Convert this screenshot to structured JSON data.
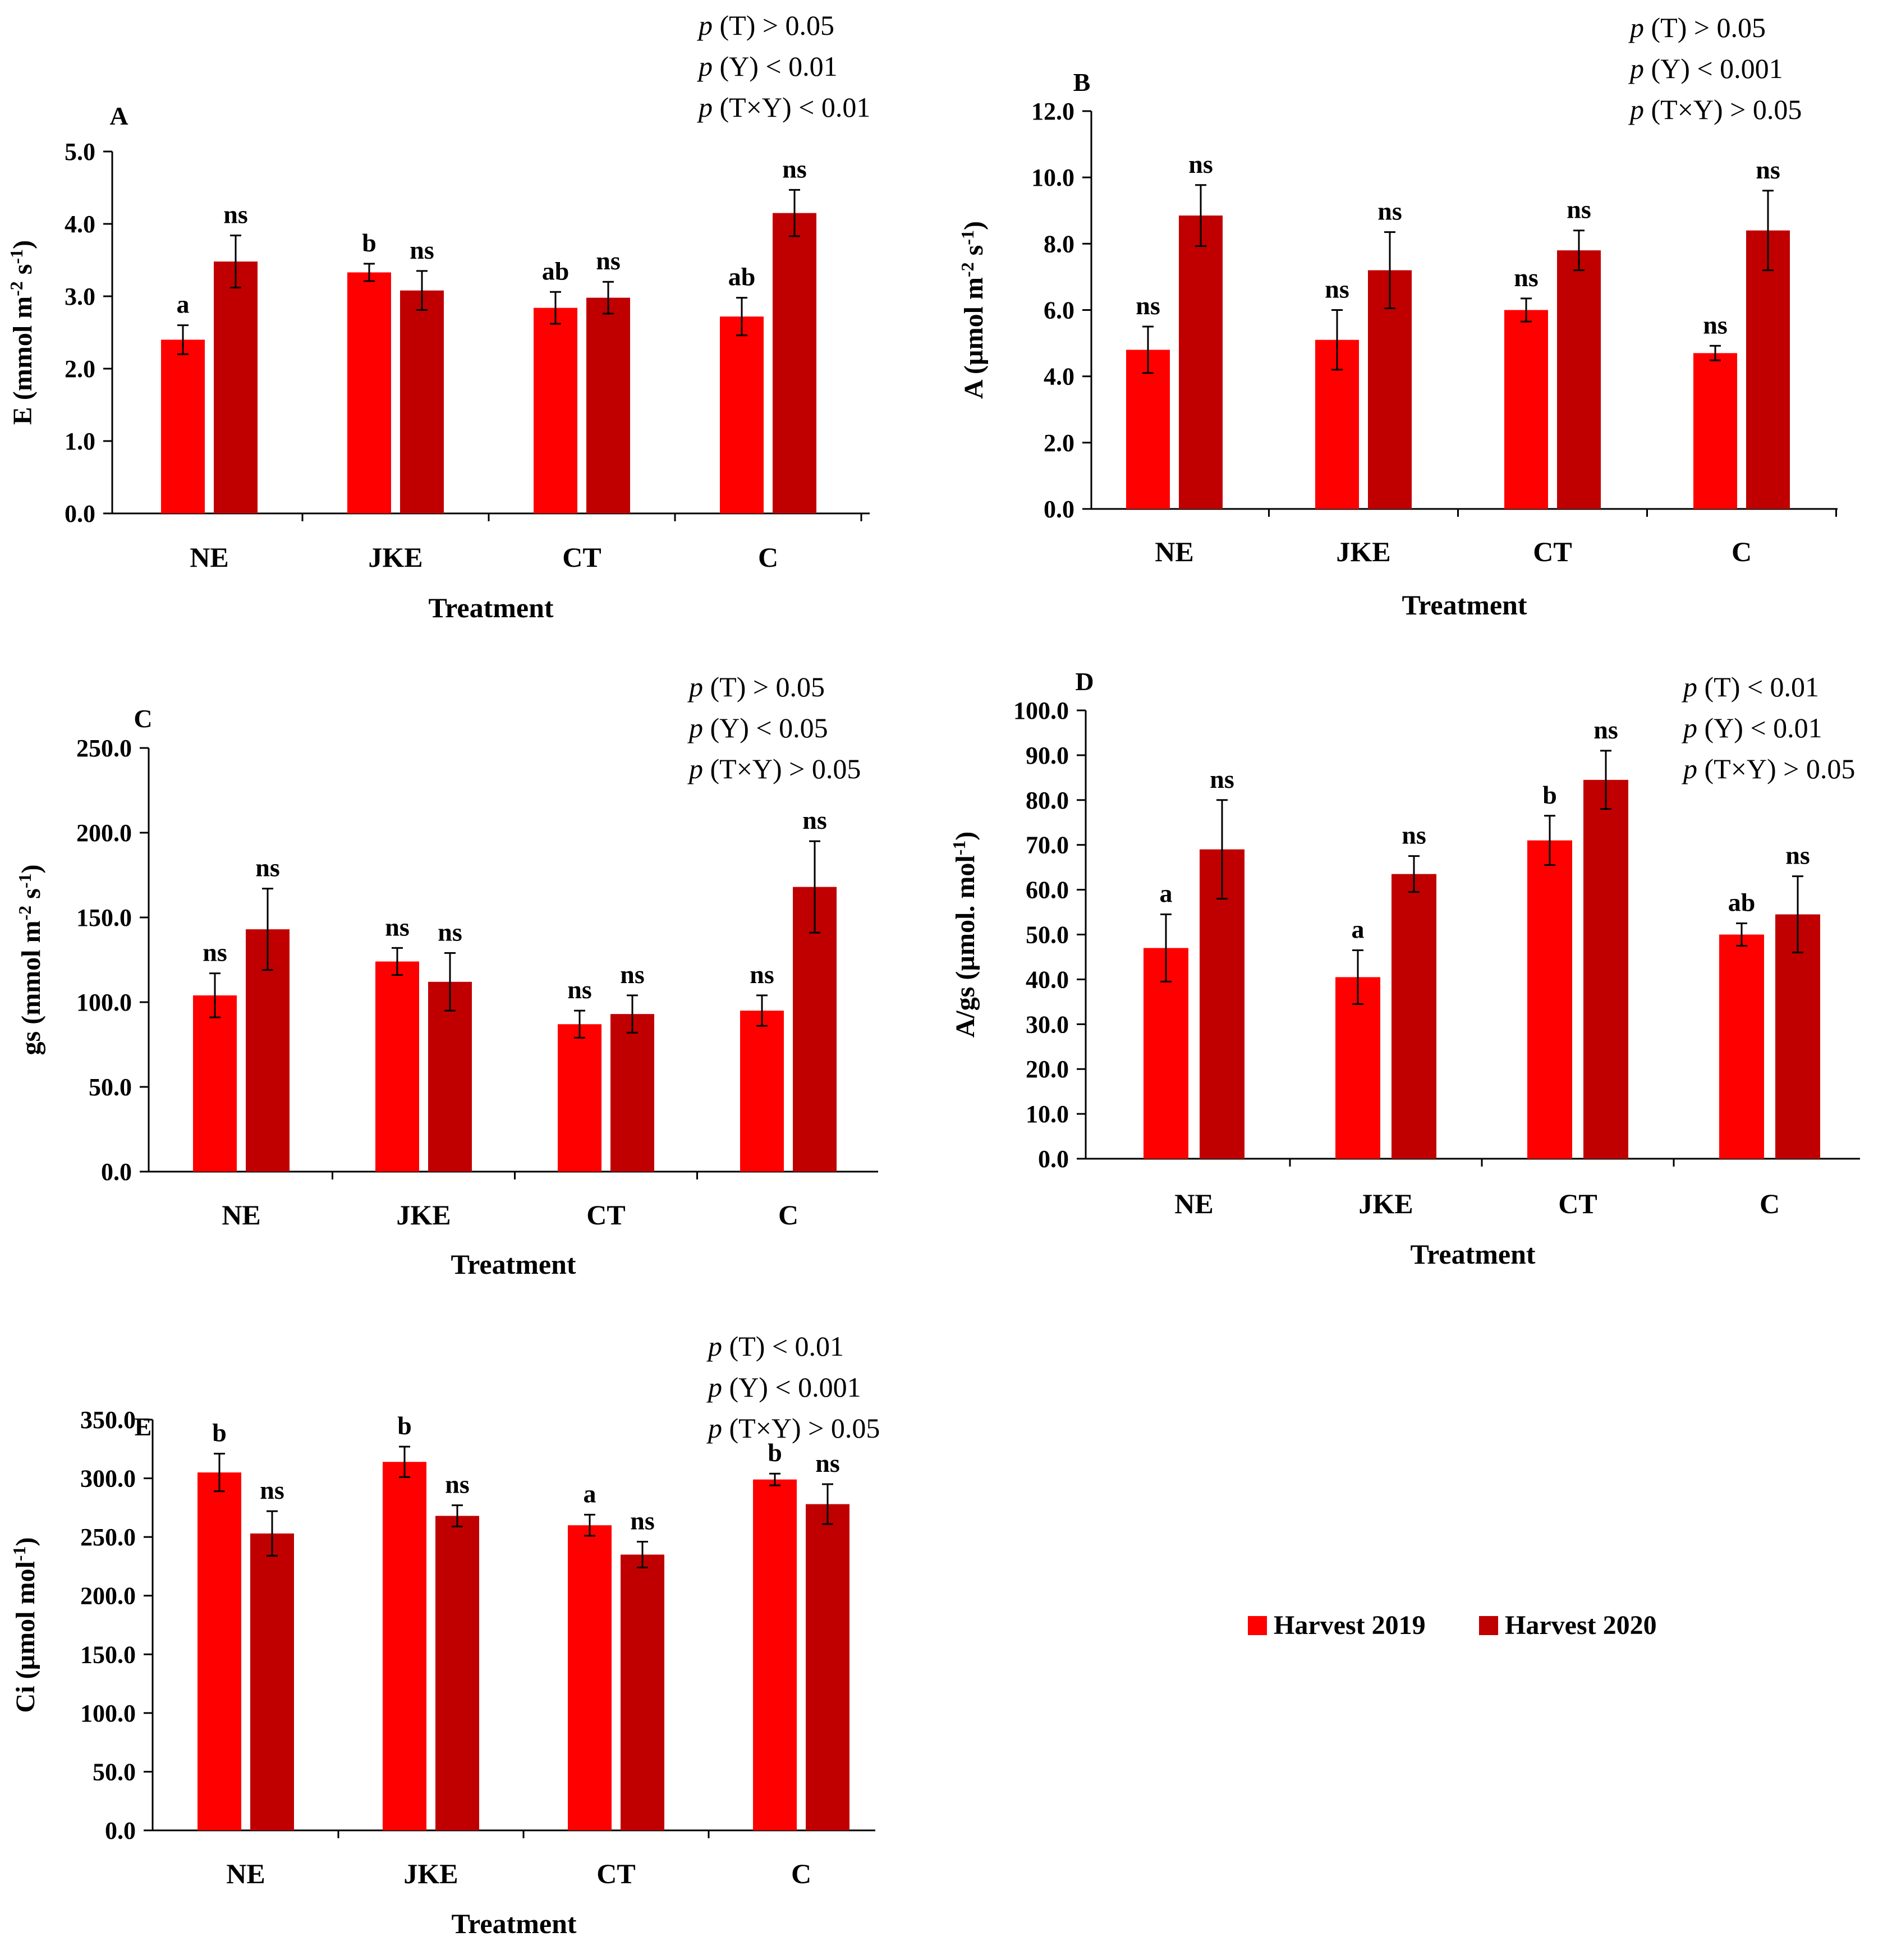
{
  "colors": {
    "harvest_2019": "#ff0000",
    "harvest_2020": "#c00000",
    "axis": "#000000"
  },
  "legend": {
    "items": [
      "Harvest 2019",
      "Harvest 2020"
    ]
  },
  "chart_data": [
    {
      "type": "bar",
      "panel": "A",
      "categories": [
        "NE",
        "JKE",
        "CT",
        "C"
      ],
      "xlabel": "Treatment",
      "ylabel": {
        "main": "E (mmol m",
        "sup1": "-2",
        "mid": " s",
        "sup2": "-1",
        "end": ")"
      },
      "ylim": [
        0,
        5
      ],
      "yticks": [
        "0.0",
        "1.0",
        "2.0",
        "3.0",
        "4.0",
        "5.0"
      ],
      "stats": [
        {
          "p": "p",
          "text": " (T) > 0.05"
        },
        {
          "p": "p",
          "text": " (Y) < 0.01"
        },
        {
          "p": "p",
          "text": " (T×Y) < 0.01"
        }
      ],
      "series": [
        {
          "name": "Harvest 2019",
          "values": [
            2.4,
            3.33,
            2.84,
            2.72
          ],
          "errors": [
            0.2,
            0.12,
            0.22,
            0.26
          ],
          "labels": [
            "a",
            "b",
            "ab",
            "ab"
          ]
        },
        {
          "name": "Harvest 2020",
          "values": [
            3.48,
            3.08,
            2.98,
            4.15
          ],
          "errors": [
            0.36,
            0.27,
            0.22,
            0.32
          ],
          "labels": [
            "ns",
            "ns",
            "ns",
            "ns"
          ]
        }
      ]
    },
    {
      "type": "bar",
      "panel": "B",
      "categories": [
        "NE",
        "JKE",
        "CT",
        "C"
      ],
      "xlabel": "Treatment",
      "ylabel": {
        "main": "A (µmol m",
        "sup1": "-2",
        "mid": " s",
        "sup2": "-1",
        "end": ")"
      },
      "ylim": [
        0,
        12
      ],
      "yticks": [
        "0.0",
        "2.0",
        "4.0",
        "6.0",
        "8.0",
        "10.0",
        "12.0"
      ],
      "stats": [
        {
          "p": "p",
          "text": " (T) > 0.05"
        },
        {
          "p": "p",
          "text": " (Y) < 0.001"
        },
        {
          "p": "p",
          "text": " (T×Y) > 0.05"
        }
      ],
      "series": [
        {
          "name": "Harvest 2019",
          "values": [
            4.8,
            5.1,
            6.0,
            4.7
          ],
          "errors": [
            0.7,
            0.9,
            0.35,
            0.22
          ],
          "labels": [
            "ns",
            "ns",
            "ns",
            "ns"
          ]
        },
        {
          "name": "Harvest 2020",
          "values": [
            8.85,
            7.2,
            7.8,
            8.4
          ],
          "errors": [
            0.92,
            1.15,
            0.6,
            1.2
          ],
          "labels": [
            "ns",
            "ns",
            "ns",
            "ns"
          ]
        }
      ]
    },
    {
      "type": "bar",
      "panel": "C",
      "categories": [
        "NE",
        "JKE",
        "CT",
        "C"
      ],
      "xlabel": "Treatment",
      "ylabel": {
        "main": "gs (mmol m",
        "sup1": "-2",
        "mid": " s",
        "sup2": "-1",
        "end": ")"
      },
      "ylim": [
        0,
        250
      ],
      "yticks": [
        "0.0",
        "50.0",
        "100.0",
        "150.0",
        "200.0",
        "250.0"
      ],
      "stats": [
        {
          "p": "p",
          "text": " (T) > 0.05"
        },
        {
          "p": "p",
          "text": " (Y) < 0.05"
        },
        {
          "p": "p",
          "text": " (T×Y) > 0.05"
        }
      ],
      "series": [
        {
          "name": "Harvest 2019",
          "values": [
            104,
            124,
            87,
            95
          ],
          "errors": [
            13,
            8,
            8,
            9
          ],
          "labels": [
            "ns",
            "ns",
            "ns",
            "ns"
          ]
        },
        {
          "name": "Harvest 2020",
          "values": [
            143,
            112,
            93,
            168
          ],
          "errors": [
            24,
            17,
            11,
            27
          ],
          "labels": [
            "ns",
            "ns",
            "ns",
            "ns"
          ]
        }
      ]
    },
    {
      "type": "bar",
      "panel": "D",
      "categories": [
        "NE",
        "JKE",
        "CT",
        "C"
      ],
      "xlabel": "Treatment",
      "ylabel": {
        "main": "A/gs (µmol. mol",
        "sup1": "-1",
        "mid": "",
        "sup2": "",
        "end": ")"
      },
      "ylim": [
        0,
        100
      ],
      "yticks": [
        "0.0",
        "10.0",
        "20.0",
        "30.0",
        "40.0",
        "50.0",
        "60.0",
        "70.0",
        "80.0",
        "90.0",
        "100.0"
      ],
      "stats": [
        {
          "p": "p",
          "text": " (T) < 0.01"
        },
        {
          "p": "p",
          "text": " (Y) < 0.01"
        },
        {
          "p": "p",
          "text": " (T×Y) > 0.05"
        }
      ],
      "series": [
        {
          "name": "Harvest 2019",
          "values": [
            47,
            40.5,
            71,
            50
          ],
          "errors": [
            7.5,
            6,
            5.5,
            2.5
          ],
          "labels": [
            "a",
            "a",
            "b",
            "ab"
          ]
        },
        {
          "name": "Harvest 2020",
          "values": [
            69,
            63.5,
            84.5,
            54.5
          ],
          "errors": [
            11,
            4,
            6.5,
            8.5
          ],
          "labels": [
            "ns",
            "ns",
            "ns",
            "ns"
          ]
        }
      ]
    },
    {
      "type": "bar",
      "panel": "E",
      "categories": [
        "NE",
        "JKE",
        "CT",
        "C"
      ],
      "xlabel": "Treatment",
      "ylabel": {
        "main": "Ci (µmol mol",
        "sup1": "-1",
        "mid": "",
        "sup2": "",
        "end": ")"
      },
      "ylim": [
        0,
        350
      ],
      "yticks": [
        "0.0",
        "50.0",
        "100.0",
        "150.0",
        "200.0",
        "250.0",
        "300.0",
        "350.0"
      ],
      "stats": [
        {
          "p": "p",
          "text": " (T) < 0.01"
        },
        {
          "p": "p",
          "text": " (Y) < 0.001"
        },
        {
          "p": "p",
          "text": " (T×Y) > 0.05"
        }
      ],
      "series": [
        {
          "name": "Harvest 2019",
          "values": [
            305,
            314,
            260,
            299
          ],
          "errors": [
            16,
            13,
            9,
            5
          ],
          "labels": [
            "b",
            "b",
            "a",
            "b"
          ]
        },
        {
          "name": "Harvest 2020",
          "values": [
            253,
            268,
            235,
            278
          ],
          "errors": [
            19,
            9,
            11,
            17
          ],
          "labels": [
            "ns",
            "ns",
            "ns",
            "ns"
          ]
        }
      ]
    }
  ]
}
